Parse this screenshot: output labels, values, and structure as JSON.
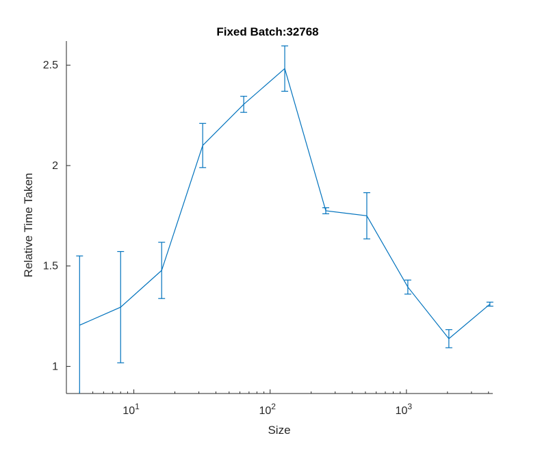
{
  "chart_data": {
    "type": "line",
    "title": "Fixed Batch:32768",
    "xlabel": "Size",
    "ylabel": "Relative Time Taken",
    "x_scale": "log",
    "x_tick_base": "10",
    "x_ticks": [
      {
        "value": 10,
        "exponent": "1"
      },
      {
        "value": 100,
        "exponent": "2"
      },
      {
        "value": 1000,
        "exponent": "3"
      }
    ],
    "y_ticks": [
      {
        "value": 1,
        "label": "1"
      },
      {
        "value": 1.5,
        "label": "1.5"
      },
      {
        "value": 2,
        "label": "2"
      },
      {
        "value": 2.5,
        "label": "2.5"
      }
    ],
    "xlim": [
      3.2,
      4300
    ],
    "ylim": [
      0.865,
      2.62
    ],
    "grid": false,
    "line_color": "#0072bd",
    "axis_color": "#262626",
    "series": [
      {
        "x": [
          4,
          8,
          16,
          32,
          64,
          128,
          256,
          512,
          1024,
          2048,
          4096
        ],
        "y": [
          1.205,
          1.295,
          1.478,
          2.1,
          2.305,
          2.483,
          1.775,
          1.75,
          1.395,
          1.138,
          1.31
        ],
        "err_low": [
          0.345,
          0.277,
          0.14,
          0.11,
          0.04,
          0.113,
          0.015,
          0.115,
          0.035,
          0.045,
          0.01
        ],
        "err_high": [
          0.345,
          0.277,
          0.14,
          0.11,
          0.04,
          0.113,
          0.015,
          0.115,
          0.035,
          0.045,
          0.01
        ]
      }
    ]
  }
}
